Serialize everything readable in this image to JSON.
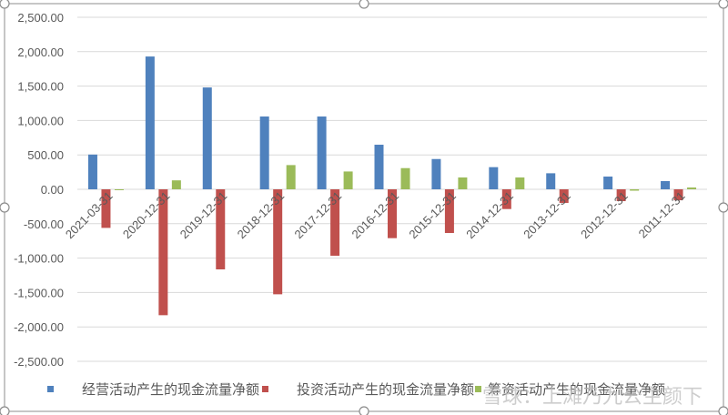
{
  "chart_data": {
    "type": "bar",
    "title": "",
    "xlabel": "",
    "ylabel": "",
    "ylim": [
      -2500,
      2500
    ],
    "grid": true,
    "legend_position": "bottom",
    "y_ticks": [
      "2,500.00",
      "2,000.00",
      "1,500.00",
      "1,000.00",
      "500.00",
      "0.00",
      "-500.00",
      "-1,000.00",
      "-1,500.00",
      "-2,000.00",
      "-2,500.00"
    ],
    "y_tick_values": [
      2500,
      2000,
      1500,
      1000,
      500,
      0,
      -500,
      -1000,
      -1500,
      -2000,
      -2500
    ],
    "categories": [
      "2021-03-31",
      "2020-12-31",
      "2019-12-31",
      "2018-12-31",
      "2017-12-31",
      "2016-12-31",
      "2015-12-31",
      "2014-12-31",
      "2013-12-31",
      "2012-12-31",
      "2011-12-31"
    ],
    "series": [
      {
        "name": "经营活动产生的现金流量净额",
        "color": "#4f81bd",
        "values": [
          505,
          1930,
          1480,
          1058,
          1058,
          648,
          440,
          322,
          233,
          185,
          119
        ]
      },
      {
        "name": "投资活动产生的现金流量净额",
        "color": "#c0504d",
        "values": [
          -561,
          -1830,
          -1164,
          -1526,
          -966,
          -710,
          -635,
          -287,
          -198,
          -172,
          -159
        ]
      },
      {
        "name": "筹资活动产生的现金流量净额",
        "color": "#9bbb59",
        "values": [
          -10,
          130,
          0,
          352,
          259,
          308,
          172,
          172,
          0,
          -20,
          26
        ]
      }
    ]
  },
  "legend": {
    "items": [
      {
        "label": "经营活动产生的现金流量净额",
        "color": "#4f81bd"
      },
      {
        "label": "投资活动产生的现金流量净额",
        "color": "#c0504d"
      },
      {
        "label": "筹资活动产生的现金流量净额",
        "color": "#9bbb59"
      }
    ]
  },
  "watermark": {
    "text": "雪球：上滩乃九公主颜下"
  }
}
